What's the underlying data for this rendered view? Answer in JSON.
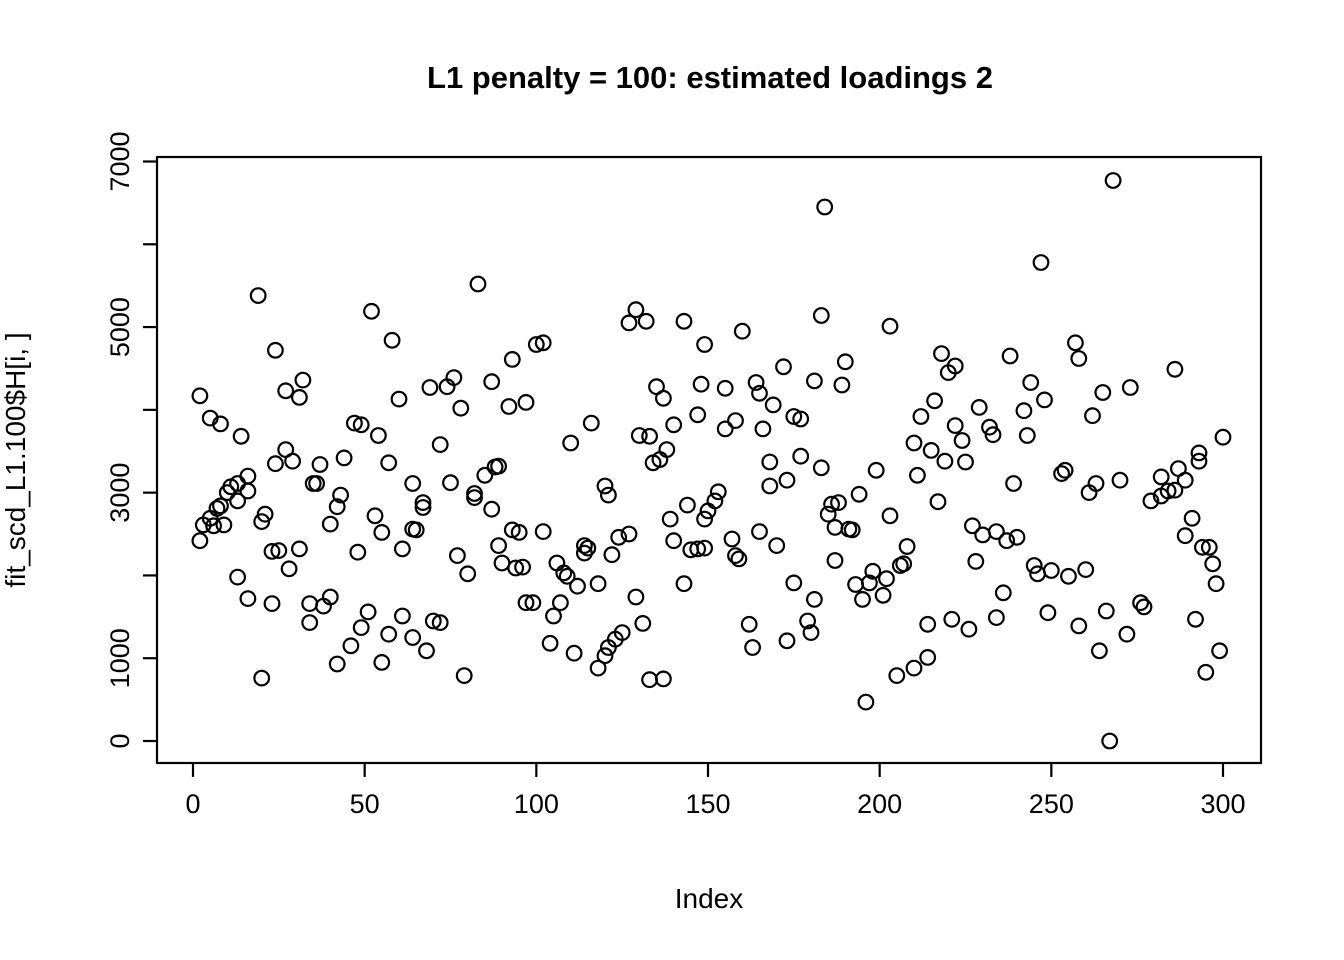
{
  "chart_data": {
    "type": "scatter",
    "title": "L1 penalty = 100: estimated loadings 2",
    "xlabel": "Index",
    "ylabel": "fit_scd_L1.100$H[i, ]",
    "marker": "open-circle",
    "marker_color": "#000000",
    "background_color": "#ffffff",
    "grid": false,
    "xlim": [
      -11,
      312
    ],
    "ylim": [
      -280,
      7280
    ],
    "x_tick_values": [
      0,
      50,
      100,
      150,
      200,
      250,
      300
    ],
    "x_tick_labels": [
      "0",
      "50",
      "100",
      "150",
      "200",
      "250",
      "300"
    ],
    "y_tick_values": [
      0,
      1000,
      2000,
      3000,
      4000,
      5000,
      6000,
      7000
    ],
    "y_tick_labels": [
      "0",
      "1000",
      "",
      "3000",
      "",
      "5000",
      "",
      "7000"
    ],
    "points": [
      [
        2,
        4170
      ],
      [
        2,
        2420
      ],
      [
        3,
        2610
      ],
      [
        5,
        3900
      ],
      [
        5,
        2690
      ],
      [
        6,
        2600
      ],
      [
        7,
        2810
      ],
      [
        8,
        3830
      ],
      [
        8,
        2840
      ],
      [
        9,
        2610
      ],
      [
        10,
        3000
      ],
      [
        11,
        3070
      ],
      [
        13,
        2900
      ],
      [
        13,
        3110
      ],
      [
        13,
        1980
      ],
      [
        14,
        3680
      ],
      [
        16,
        3200
      ],
      [
        16,
        3020
      ],
      [
        16,
        1720
      ],
      [
        19,
        5380
      ],
      [
        20,
        2650
      ],
      [
        20,
        760
      ],
      [
        21,
        2740
      ],
      [
        23,
        2290
      ],
      [
        23,
        1660
      ],
      [
        24,
        4720
      ],
      [
        24,
        3350
      ],
      [
        25,
        2300
      ],
      [
        27,
        4230
      ],
      [
        27,
        3520
      ],
      [
        28,
        2080
      ],
      [
        29,
        3380
      ],
      [
        31,
        4150
      ],
      [
        31,
        2320
      ],
      [
        32,
        4360
      ],
      [
        34,
        1660
      ],
      [
        34,
        1430
      ],
      [
        35,
        3110
      ],
      [
        36,
        3110
      ],
      [
        37,
        3340
      ],
      [
        38,
        1630
      ],
      [
        40,
        2620
      ],
      [
        40,
        1740
      ],
      [
        42,
        2830
      ],
      [
        42,
        930
      ],
      [
        43,
        2970
      ],
      [
        44,
        3420
      ],
      [
        46,
        1150
      ],
      [
        47,
        3840
      ],
      [
        48,
        2280
      ],
      [
        49,
        3820
      ],
      [
        49,
        1370
      ],
      [
        51,
        1560
      ],
      [
        52,
        5190
      ],
      [
        53,
        2720
      ],
      [
        54,
        3690
      ],
      [
        55,
        2520
      ],
      [
        55,
        950
      ],
      [
        57,
        3360
      ],
      [
        57,
        1290
      ],
      [
        58,
        4840
      ],
      [
        60,
        4130
      ],
      [
        61,
        2320
      ],
      [
        61,
        1510
      ],
      [
        64,
        3110
      ],
      [
        64,
        2560
      ],
      [
        64,
        1250
      ],
      [
        65,
        2550
      ],
      [
        67,
        2880
      ],
      [
        67,
        2820
      ],
      [
        68,
        1090
      ],
      [
        69,
        4270
      ],
      [
        70,
        1450
      ],
      [
        72,
        3580
      ],
      [
        72,
        1430
      ],
      [
        74,
        4280
      ],
      [
        75,
        3120
      ],
      [
        76,
        4390
      ],
      [
        77,
        2240
      ],
      [
        78,
        4020
      ],
      [
        79,
        790
      ],
      [
        80,
        2020
      ],
      [
        82,
        2990
      ],
      [
        82,
        2940
      ],
      [
        83,
        5520
      ],
      [
        85,
        3210
      ],
      [
        87,
        4340
      ],
      [
        87,
        2800
      ],
      [
        88,
        3310
      ],
      [
        89,
        3320
      ],
      [
        89,
        2360
      ],
      [
        90,
        2150
      ],
      [
        92,
        4040
      ],
      [
        93,
        4610
      ],
      [
        93,
        2550
      ],
      [
        94,
        2090
      ],
      [
        95,
        2520
      ],
      [
        96,
        2100
      ],
      [
        97,
        4090
      ],
      [
        97,
        1670
      ],
      [
        99,
        1670
      ],
      [
        100,
        4790
      ],
      [
        102,
        4810
      ],
      [
        102,
        2530
      ],
      [
        104,
        1180
      ],
      [
        105,
        1510
      ],
      [
        106,
        2150
      ],
      [
        107,
        1670
      ],
      [
        108,
        2030
      ],
      [
        109,
        1990
      ],
      [
        110,
        3600
      ],
      [
        111,
        1060
      ],
      [
        112,
        1870
      ],
      [
        114,
        2360
      ],
      [
        114,
        2270
      ],
      [
        115,
        2330
      ],
      [
        116,
        3840
      ],
      [
        118,
        1900
      ],
      [
        118,
        880
      ],
      [
        120,
        3080
      ],
      [
        120,
        1030
      ],
      [
        121,
        2970
      ],
      [
        121,
        1130
      ],
      [
        122,
        2250
      ],
      [
        123,
        1230
      ],
      [
        124,
        2460
      ],
      [
        125,
        1310
      ],
      [
        127,
        5050
      ],
      [
        127,
        2500
      ],
      [
        129,
        5210
      ],
      [
        129,
        1740
      ],
      [
        130,
        3690
      ],
      [
        131,
        1420
      ],
      [
        132,
        5070
      ],
      [
        133,
        3680
      ],
      [
        133,
        740
      ],
      [
        134,
        3360
      ],
      [
        135,
        4280
      ],
      [
        136,
        3400
      ],
      [
        137,
        4140
      ],
      [
        137,
        750
      ],
      [
        138,
        3520
      ],
      [
        139,
        2680
      ],
      [
        140,
        3820
      ],
      [
        140,
        2420
      ],
      [
        143,
        5070
      ],
      [
        143,
        1900
      ],
      [
        144,
        2850
      ],
      [
        145,
        2310
      ],
      [
        147,
        3940
      ],
      [
        147,
        2320
      ],
      [
        148,
        4310
      ],
      [
        149,
        4790
      ],
      [
        149,
        2680
      ],
      [
        149,
        2330
      ],
      [
        150,
        2780
      ],
      [
        152,
        2900
      ],
      [
        153,
        3010
      ],
      [
        155,
        4260
      ],
      [
        155,
        3770
      ],
      [
        157,
        2440
      ],
      [
        158,
        3870
      ],
      [
        158,
        2240
      ],
      [
        159,
        2200
      ],
      [
        160,
        4950
      ],
      [
        162,
        1410
      ],
      [
        163,
        1130
      ],
      [
        164,
        4330
      ],
      [
        165,
        4200
      ],
      [
        165,
        2530
      ],
      [
        166,
        3770
      ],
      [
        168,
        3370
      ],
      [
        168,
        3080
      ],
      [
        169,
        4060
      ],
      [
        170,
        2360
      ],
      [
        172,
        4520
      ],
      [
        173,
        3150
      ],
      [
        173,
        1210
      ],
      [
        175,
        3920
      ],
      [
        175,
        1910
      ],
      [
        177,
        3890
      ],
      [
        177,
        3440
      ],
      [
        179,
        1450
      ],
      [
        180,
        1310
      ],
      [
        181,
        4350
      ],
      [
        181,
        1710
      ],
      [
        183,
        5140
      ],
      [
        183,
        3300
      ],
      [
        184,
        6450
      ],
      [
        185,
        2740
      ],
      [
        186,
        2860
      ],
      [
        187,
        2580
      ],
      [
        187,
        2180
      ],
      [
        188,
        2880
      ],
      [
        189,
        4300
      ],
      [
        190,
        4580
      ],
      [
        191,
        2560
      ],
      [
        192,
        2550
      ],
      [
        193,
        1890
      ],
      [
        194,
        2980
      ],
      [
        195,
        1710
      ],
      [
        196,
        470
      ],
      [
        197,
        1910
      ],
      [
        198,
        2050
      ],
      [
        199,
        3270
      ],
      [
        201,
        1760
      ],
      [
        202,
        1960
      ],
      [
        203,
        5010
      ],
      [
        203,
        2720
      ],
      [
        205,
        790
      ],
      [
        206,
        2120
      ],
      [
        207,
        2140
      ],
      [
        208,
        2350
      ],
      [
        210,
        3600
      ],
      [
        210,
        880
      ],
      [
        211,
        3210
      ],
      [
        212,
        3920
      ],
      [
        214,
        1410
      ],
      [
        214,
        1010
      ],
      [
        215,
        3510
      ],
      [
        216,
        4110
      ],
      [
        217,
        2890
      ],
      [
        218,
        4680
      ],
      [
        219,
        3380
      ],
      [
        220,
        4450
      ],
      [
        221,
        1470
      ],
      [
        222,
        4530
      ],
      [
        222,
        3810
      ],
      [
        224,
        3630
      ],
      [
        225,
        3370
      ],
      [
        226,
        1350
      ],
      [
        227,
        2600
      ],
      [
        228,
        2170
      ],
      [
        229,
        4030
      ],
      [
        230,
        2490
      ],
      [
        232,
        3790
      ],
      [
        233,
        3700
      ],
      [
        234,
        2530
      ],
      [
        234,
        1490
      ],
      [
        236,
        1790
      ],
      [
        237,
        2420
      ],
      [
        238,
        4650
      ],
      [
        239,
        3110
      ],
      [
        240,
        2460
      ],
      [
        242,
        3990
      ],
      [
        243,
        3690
      ],
      [
        244,
        4330
      ],
      [
        245,
        2120
      ],
      [
        246,
        2020
      ],
      [
        247,
        5780
      ],
      [
        248,
        4120
      ],
      [
        249,
        1550
      ],
      [
        250,
        2060
      ],
      [
        253,
        3230
      ],
      [
        254,
        3270
      ],
      [
        255,
        1990
      ],
      [
        257,
        4810
      ],
      [
        258,
        4620
      ],
      [
        258,
        1390
      ],
      [
        260,
        2070
      ],
      [
        261,
        3000
      ],
      [
        262,
        3930
      ],
      [
        263,
        3110
      ],
      [
        264,
        1090
      ],
      [
        265,
        4210
      ],
      [
        266,
        1570
      ],
      [
        267,
        0
      ],
      [
        268,
        6770
      ],
      [
        270,
        3150
      ],
      [
        272,
        1290
      ],
      [
        273,
        4270
      ],
      [
        276,
        1670
      ],
      [
        277,
        1620
      ],
      [
        279,
        2900
      ],
      [
        282,
        3190
      ],
      [
        282,
        2960
      ],
      [
        284,
        3020
      ],
      [
        286,
        4490
      ],
      [
        286,
        3030
      ],
      [
        287,
        3290
      ],
      [
        289,
        3150
      ],
      [
        289,
        2480
      ],
      [
        291,
        2690
      ],
      [
        292,
        1470
      ],
      [
        293,
        3480
      ],
      [
        293,
        3380
      ],
      [
        294,
        2340
      ],
      [
        295,
        830
      ],
      [
        296,
        2340
      ],
      [
        297,
        2140
      ],
      [
        298,
        1900
      ],
      [
        299,
        1090
      ],
      [
        300,
        3670
      ]
    ]
  }
}
